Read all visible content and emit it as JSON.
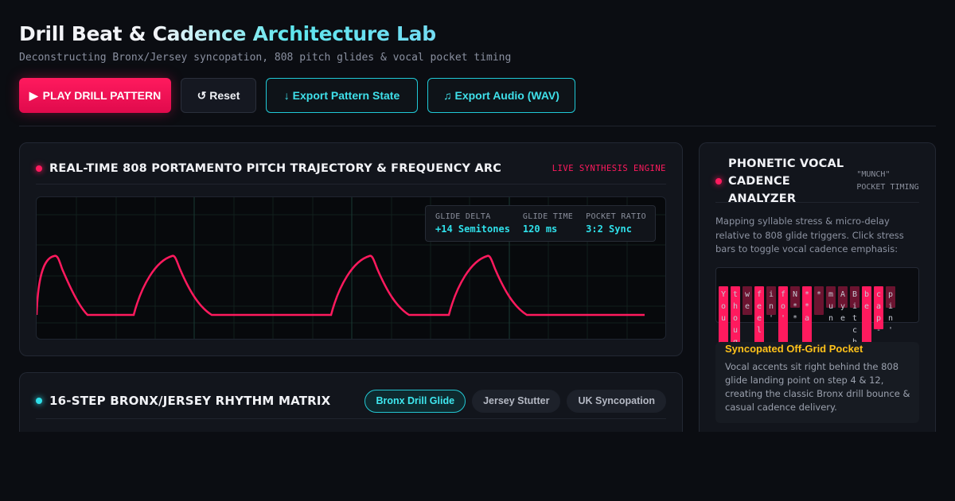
{
  "header": {
    "title": "Drill Beat & Cadence Architecture Lab",
    "subtitle": "Deconstructing Bronx/Jersey syncopation, 808 pitch glides & vocal pocket timing"
  },
  "toolbar": {
    "play_label": "PLAY DRILL PATTERN",
    "reset_label": "↺ Reset",
    "export_state_label": "↓ Export Pattern State",
    "export_audio_label": "♫ Export Audio (WAV)"
  },
  "synth": {
    "title": "REAL-TIME 808 PORTAMENTO PITCH TRAJECTORY & FREQUENCY ARC",
    "badge": "LIVE SYNTHESIS ENGINE",
    "readout": [
      {
        "label": "GLIDE DELTA",
        "value": "+14 Semitones"
      },
      {
        "label": "GLIDE TIME",
        "value": "120 ms"
      },
      {
        "label": "POCKET RATIO",
        "value": "3:2 Sync"
      }
    ],
    "accent_color": "#ff1a5e"
  },
  "rhythm": {
    "title": "16-STEP BRONX/JERSEY RHYTHM MATRIX",
    "presets": [
      {
        "label": "Bronx Drill Glide",
        "active": true
      },
      {
        "label": "Jersey Stutter",
        "active": false
      },
      {
        "label": "UK Syncopation",
        "active": false
      }
    ]
  },
  "vocal": {
    "title": "PHONETIC VOCAL CADENCE ANALYZER",
    "tag": "\"MUNCH\" POCKET TIMING",
    "description": "Mapping syllable stress & micro-delay relative to 808 glide triggers. Click stress bars to toggle vocal cadence emphasis:",
    "stress_bars": [
      {
        "level": 0.9,
        "letters": "You"
      },
      {
        "level": 1.0,
        "letters": "thought"
      },
      {
        "level": 0.4,
        "letters": "we"
      },
      {
        "level": 1.0,
        "letters": "feel"
      },
      {
        "level": 0.4,
        "letters": "in'"
      },
      {
        "level": 0.9,
        "letters": "fo'"
      },
      {
        "level": 0.3,
        "letters": "N**"
      },
      {
        "level": 1.0,
        "letters": "**a"
      },
      {
        "level": 0.4,
        "letters": "*"
      },
      {
        "level": 0.3,
        "letters": "mun"
      },
      {
        "level": 0.3,
        "letters": "Aye"
      },
      {
        "level": 0.3,
        "letters": "Bitch"
      },
      {
        "level": 0.9,
        "letters": "be"
      },
      {
        "level": 0.6,
        "letters": "cap-"
      },
      {
        "level": 0.3,
        "letters": "pin'"
      }
    ],
    "pocket_title": "Syncopated Off-Grid Pocket",
    "pocket_desc": "Vocal accents sit right behind the 808 glide landing point on step 4 & 12, creating the classic Bronx drill bounce & casual cadence delivery."
  }
}
